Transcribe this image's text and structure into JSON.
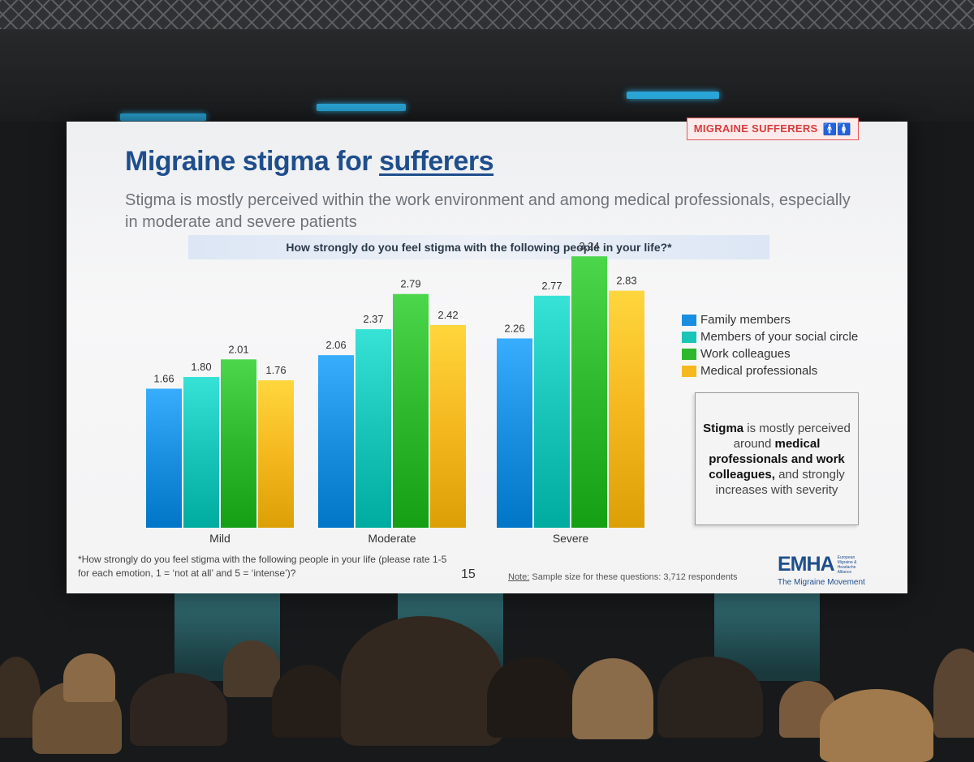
{
  "slide": {
    "badge": "MIGRAINE SUFFERERS",
    "badge_icon": "people-icon",
    "title_prefix": "Migraine stigma for ",
    "title_emphasis": "sufferers",
    "subtitle": "Stigma is mostly perceived within the work environment and among medical professionals, especially in moderate and severe patients",
    "question": "How strongly do you feel stigma with the following people in your life?*",
    "callout": {
      "part1": "Stigma",
      "part2": " is mostly perceived around ",
      "part3": "medical professionals and work colleagues,",
      "part4": " and strongly increases with severity"
    },
    "footnote": "*How strongly do you feel stigma with the following people in your life (please rate 1-5 for each emotion, 1 = ‘not at all’ and 5 = ‘intense’)?",
    "page_number": "15",
    "note_label": "Note:",
    "note_text": " Sample size for these questions: 3,712 respondents",
    "logo": {
      "name": "EMHA",
      "small": "European Migraine & Headache Alliance",
      "tagline": "The Migraine Movement"
    }
  },
  "chart_data": {
    "type": "bar",
    "categories": [
      "Mild",
      "Moderate",
      "Severe"
    ],
    "series": [
      {
        "name": "Family members",
        "values": [
          1.66,
          2.06,
          2.26
        ],
        "color": "#1a8fe0"
      },
      {
        "name": "Members of your social circle",
        "values": [
          1.8,
          2.37,
          2.77
        ],
        "color": "#19c4b8"
      },
      {
        "name": "Work colleagues",
        "values": [
          2.01,
          2.79,
          3.24
        ],
        "color": "#2eb82e"
      },
      {
        "name": "Medical professionals",
        "values": [
          1.76,
          2.42,
          2.83
        ],
        "color": "#f5b81f"
      }
    ],
    "value_labels": [
      "1.66",
      "1.80",
      "2.01",
      "1.76",
      "2.06",
      "2.37",
      "2.79",
      "2.42",
      "2.26",
      "2.77",
      "3.24",
      "2.83"
    ],
    "ylim": [
      0,
      3.3
    ],
    "legend_position": "right",
    "grid": false
  }
}
